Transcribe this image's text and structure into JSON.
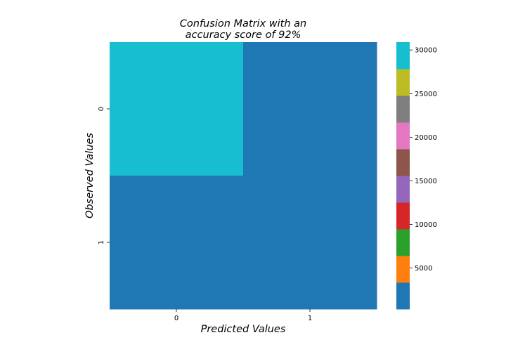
{
  "chart_data": {
    "type": "heatmap",
    "title_lines": [
      "Confusion Matrix with an",
      "accuracy score of 92%"
    ],
    "xlabel": "Predicted Values",
    "ylabel": "Observed Values",
    "x_categories": [
      "0",
      "1"
    ],
    "y_categories": [
      "0",
      "1"
    ],
    "values": [
      [
        30900,
        1200
      ],
      [
        1500,
        300
      ]
    ],
    "colorbar": {
      "ticks": [
        5000,
        10000,
        15000,
        20000,
        25000,
        30000
      ],
      "tick_labels": [
        "5000",
        "10000",
        "15000",
        "20000",
        "25000",
        "30000"
      ],
      "vmin": 300,
      "vmax": 30900,
      "colors": [
        "#1f77b4",
        "#ff7f0e",
        "#2ca02c",
        "#d62728",
        "#9467bd",
        "#8c564b",
        "#e377c2",
        "#7f7f7f",
        "#bcbd22",
        "#17becf"
      ]
    }
  }
}
